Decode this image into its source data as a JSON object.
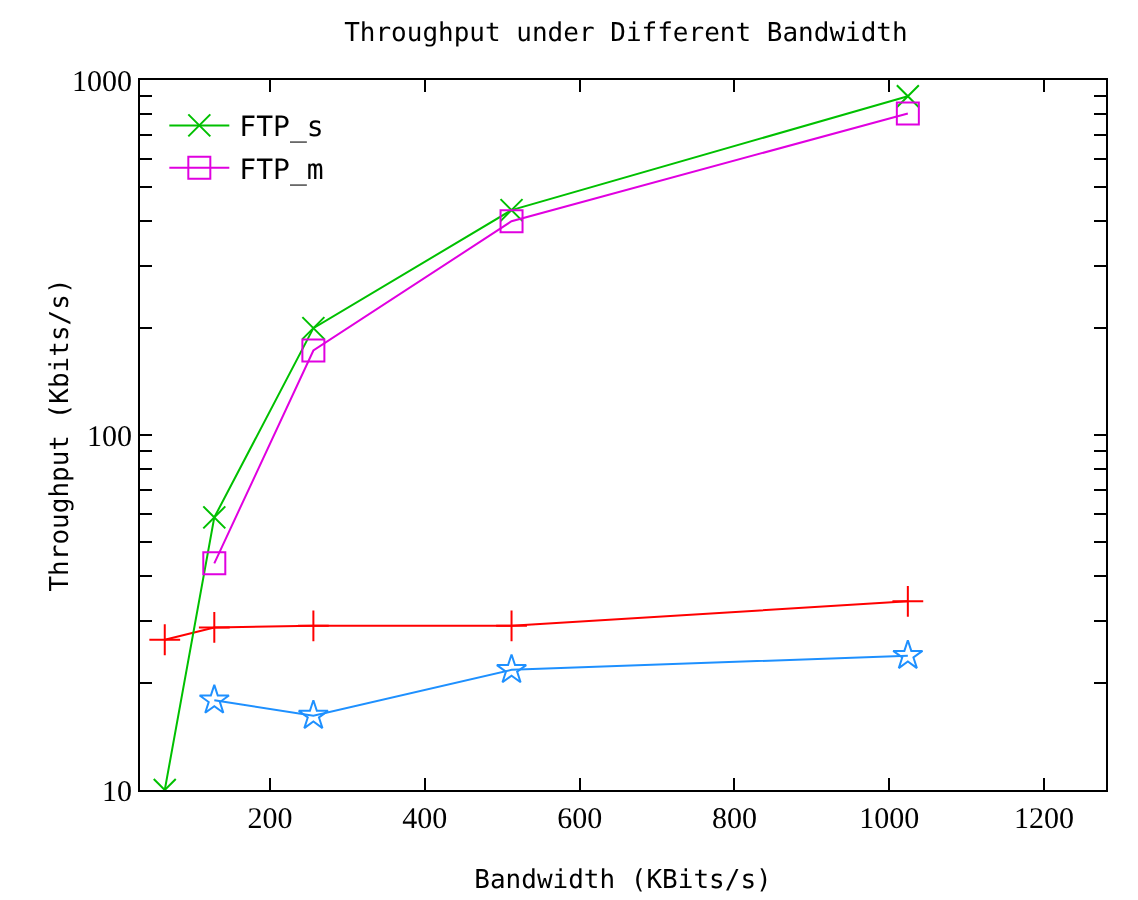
{
  "chart_data": {
    "type": "line",
    "title": "Throughput under Different Bandwidth",
    "xlabel": "Bandwidth (KBits/s)",
    "ylabel": "Throughput (Kbits/s)",
    "log": "y",
    "grid": false,
    "legend": "top left",
    "xlim": [
      32,
      1280
    ],
    "xticks": [
      200,
      400,
      600,
      800,
      1000,
      1200
    ],
    "ylim": [
      10,
      1000
    ],
    "yticks": [
      10,
      {
        "value": 20,
        "label": null
      },
      {
        "value": 30,
        "label": null
      },
      {
        "value": 40,
        "label": null
      },
      {
        "value": 50,
        "label": null
      },
      {
        "value": 60,
        "label": null
      },
      {
        "value": 70,
        "label": null
      },
      {
        "value": 80,
        "label": null
      },
      {
        "value": 90,
        "label": null
      },
      100,
      {
        "value": 200,
        "label": null
      },
      {
        "value": 300,
        "label": null
      },
      {
        "value": 400,
        "label": null
      },
      {
        "value": 500,
        "label": null
      },
      {
        "value": 600,
        "label": null
      },
      {
        "value": 700,
        "label": null
      },
      {
        "value": 800,
        "label": null
      },
      {
        "value": 900,
        "label": null
      },
      1000
    ],
    "series": [
      {
        "color": "#ff0000",
        "marker": "cross",
        "x": [
          64,
          128,
          256,
          512,
          1024
        ],
        "values": [
          26.5,
          28.7,
          29,
          29,
          34
        ]
      },
      {
        "name": "FTP_s",
        "color": "#00c000",
        "marker": "x",
        "x": [
          64,
          128,
          256,
          512,
          1024
        ],
        "values": [
          10,
          58.6,
          200,
          430,
          900
        ]
      },
      {
        "color": "#1e90ff",
        "marker": "star",
        "x": [
          128,
          256,
          512,
          1024
        ],
        "values": [
          17.9,
          16.2,
          21.8,
          23.9
        ]
      },
      {
        "name": "FTP_m",
        "color": "#e000e0",
        "marker": "square",
        "x": [
          128,
          256,
          512,
          1024
        ],
        "values": [
          43.5,
          173,
          400,
          805
        ]
      }
    ]
  }
}
